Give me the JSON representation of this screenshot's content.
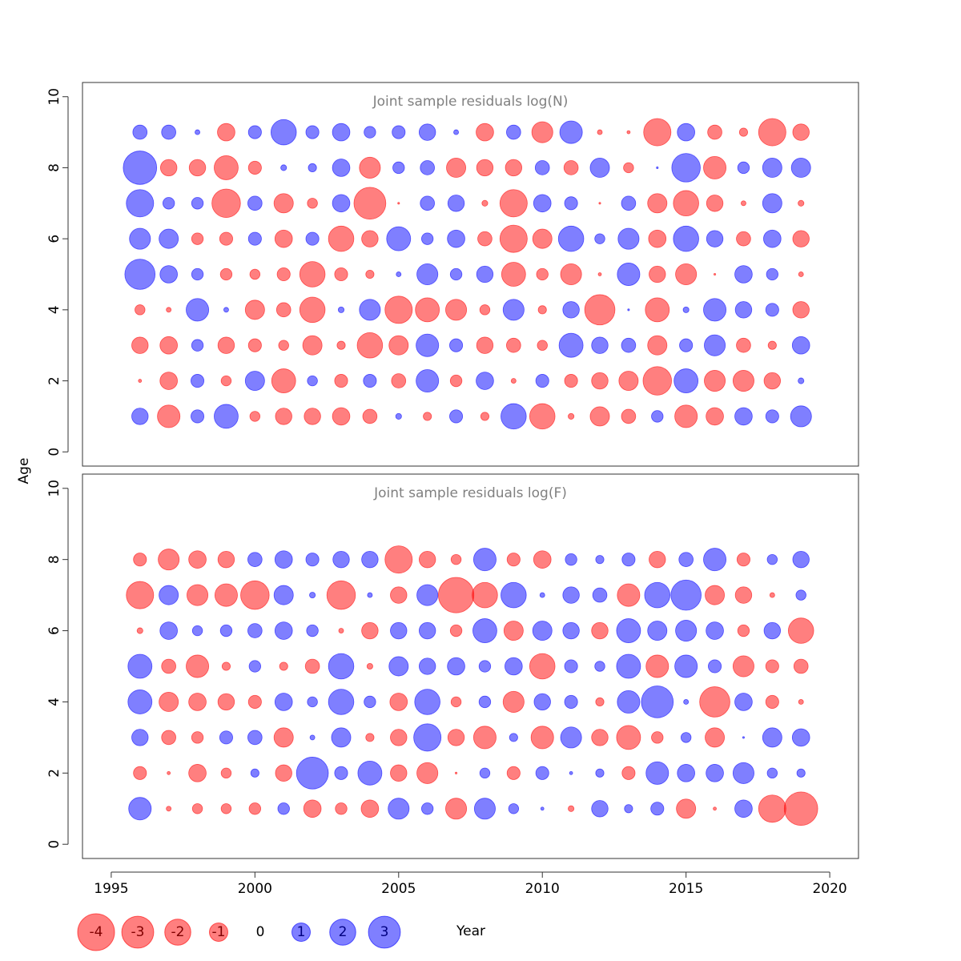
{
  "y_label": "Age",
  "x_label": "Year",
  "legend": [
    -4,
    -3,
    -2,
    -1,
    0,
    1,
    2,
    3
  ],
  "colors": {
    "negative": "#ff0000",
    "positive": "#0000ff"
  },
  "chart_data": [
    {
      "type": "bubble",
      "title": "Joint sample residuals log(N)",
      "x": [
        1996,
        1997,
        1998,
        1999,
        2000,
        2001,
        2002,
        2003,
        2004,
        2005,
        2006,
        2007,
        2008,
        2009,
        2010,
        2011,
        2012,
        2013,
        2014,
        2015,
        2016,
        2017,
        2018,
        2019
      ],
      "y": [
        1,
        2,
        3,
        4,
        5,
        6,
        7,
        8,
        9
      ],
      "values": [
        [
          0.8,
          -1.5,
          0.5,
          1.7,
          -0.3,
          -0.8,
          -0.8,
          -0.9,
          -0.6,
          0.1,
          -0.2,
          0.5,
          -0.2,
          1.9,
          -1.9,
          -0.1,
          -1.1,
          -0.6,
          0.4,
          -1.5,
          -0.9,
          0.9,
          0.5,
          1.3
        ],
        [
          -0.03,
          -0.9,
          0.5,
          -0.3,
          1.1,
          -1.7,
          0.3,
          -0.5,
          0.5,
          -0.6,
          1.5,
          -0.4,
          0.9,
          -0.07,
          0.5,
          -0.5,
          -0.8,
          -1.1,
          -2.4,
          1.7,
          -1.3,
          -1.3,
          -0.8,
          0.1
        ],
        [
          -0.8,
          -0.9,
          0.4,
          -0.8,
          -0.5,
          -0.3,
          -1.1,
          -0.2,
          -1.9,
          -1.1,
          1.5,
          0.5,
          -0.8,
          -0.6,
          -0.3,
          1.7,
          0.8,
          0.6,
          -1.1,
          0.5,
          1.3,
          -0.6,
          -0.2,
          0.9
        ],
        [
          -0.3,
          -0.07,
          1.5,
          0.07,
          -1.1,
          -0.6,
          -1.9,
          0.1,
          1.3,
          -2.2,
          -1.7,
          -1.3,
          -0.3,
          1.3,
          -0.2,
          0.8,
          -2.7,
          0.01,
          -1.7,
          0.1,
          1.5,
          0.8,
          0.5,
          -0.8
        ],
        [
          2.7,
          0.9,
          0.4,
          -0.4,
          -0.3,
          -0.5,
          -1.9,
          -0.5,
          -0.2,
          0.07,
          1.3,
          0.4,
          0.8,
          -1.7,
          -0.4,
          -1.3,
          -0.03,
          1.5,
          -0.8,
          -1.3,
          -0.01,
          0.9,
          0.4,
          -0.07
        ],
        [
          1.3,
          1.1,
          -0.4,
          -0.5,
          0.5,
          -0.9,
          0.5,
          -1.9,
          -0.8,
          1.7,
          0.4,
          0.9,
          -0.6,
          -2.2,
          -1.1,
          1.9,
          0.3,
          1.3,
          -0.9,
          1.9,
          0.8,
          -0.6,
          0.9,
          -0.8
        ],
        [
          2.2,
          0.4,
          0.4,
          -2.4,
          0.6,
          -1.1,
          -0.3,
          0.9,
          -3.0,
          -0.01,
          0.6,
          0.8,
          -0.1,
          -2.2,
          0.9,
          0.5,
          -0.01,
          0.6,
          -1.1,
          -1.9,
          -0.8,
          -0.07,
          1.1,
          -0.1
        ],
        [
          3.3,
          -0.8,
          -0.8,
          -1.7,
          -0.5,
          0.1,
          0.2,
          0.9,
          -1.3,
          0.4,
          0.6,
          -1.1,
          -0.8,
          -0.8,
          0.6,
          -0.6,
          1.1,
          -0.3,
          0.01,
          2.4,
          -1.5,
          0.4,
          1.1,
          1.1
        ],
        [
          0.6,
          0.6,
          0.07,
          -0.9,
          0.5,
          1.9,
          0.5,
          0.9,
          0.4,
          0.5,
          0.8,
          0.07,
          -0.9,
          0.6,
          -1.3,
          1.5,
          -0.07,
          -0.03,
          -2.2,
          0.9,
          -0.6,
          -0.2,
          -2.2,
          -0.8
        ]
      ],
      "xlim": [
        1994,
        2021
      ],
      "ylim": [
        -0.4,
        10.4
      ],
      "yticks": [
        0,
        2,
        4,
        6,
        8,
        10
      ]
    },
    {
      "type": "bubble",
      "title": "Joint sample residuals log(F)",
      "x": [
        1996,
        1997,
        1998,
        1999,
        2000,
        2001,
        2002,
        2003,
        2004,
        2005,
        2006,
        2007,
        2008,
        2009,
        2010,
        2011,
        2012,
        2013,
        2014,
        2015,
        2016,
        2017,
        2018,
        2019
      ],
      "y": [
        1,
        2,
        3,
        4,
        5,
        6,
        7,
        8
      ],
      "values": [
        [
          1.5,
          -0.07,
          -0.3,
          -0.3,
          -0.4,
          0.4,
          -0.9,
          -0.4,
          -0.9,
          1.3,
          0.4,
          -1.3,
          1.3,
          0.3,
          0.03,
          -0.1,
          0.8,
          0.2,
          0.5,
          -1.1,
          -0.03,
          0.9,
          -2.2,
          -3.3
        ],
        [
          -0.5,
          -0.03,
          -0.9,
          -0.3,
          0.2,
          -0.8,
          3.0,
          0.5,
          1.7,
          -0.8,
          -1.3,
          -0.01,
          0.3,
          -0.5,
          0.5,
          0.03,
          0.2,
          -0.5,
          1.5,
          0.9,
          0.9,
          1.3,
          0.3,
          0.2
        ],
        [
          0.8,
          -0.6,
          -0.4,
          0.5,
          0.6,
          -1.1,
          0.07,
          1.1,
          -0.2,
          -0.8,
          2.2,
          -0.8,
          -1.5,
          0.2,
          -1.5,
          1.3,
          -0.8,
          -1.7,
          -0.4,
          0.3,
          -1.1,
          0.01,
          1.1,
          0.9
        ],
        [
          1.7,
          -1.1,
          -0.9,
          -0.8,
          -0.5,
          0.9,
          0.3,
          1.9,
          0.4,
          -0.9,
          1.9,
          -0.3,
          0.4,
          -1.3,
          0.8,
          0.5,
          -0.2,
          1.5,
          3.0,
          0.07,
          -2.7,
          0.9,
          -0.5,
          -0.07
        ],
        [
          1.7,
          -0.6,
          -1.5,
          -0.2,
          0.4,
          -0.2,
          -0.6,
          1.9,
          -0.1,
          1.1,
          0.8,
          0.9,
          0.4,
          0.9,
          -1.9,
          0.5,
          0.3,
          1.7,
          -1.5,
          1.5,
          0.5,
          -1.3,
          -0.5,
          -0.6
        ],
        [
          -0.1,
          0.9,
          0.3,
          0.4,
          0.6,
          0.9,
          0.4,
          -0.07,
          -0.8,
          0.8,
          0.8,
          -0.4,
          1.7,
          -1.1,
          1.1,
          0.8,
          -0.8,
          1.7,
          1.1,
          1.3,
          0.9,
          -0.4,
          0.8,
          -1.9
        ],
        [
          -2.2,
          1.1,
          -1.3,
          -1.5,
          -2.4,
          1.1,
          0.1,
          -2.4,
          0.07,
          -0.8,
          1.3,
          -3.7,
          -1.9,
          1.9,
          0.07,
          0.8,
          0.6,
          -1.5,
          1.9,
          2.7,
          -1.1,
          -0.8,
          -0.07,
          0.3
        ],
        [
          -0.5,
          -1.3,
          -0.9,
          -0.8,
          0.6,
          0.9,
          0.5,
          0.8,
          0.8,
          -2.2,
          -0.8,
          -0.3,
          1.5,
          -0.5,
          -0.9,
          0.4,
          0.2,
          0.5,
          -0.8,
          0.6,
          1.5,
          -0.5,
          0.3,
          0.8
        ]
      ],
      "xlim": [
        1994,
        2021
      ],
      "ylim": [
        -0.4,
        10.4
      ],
      "yticks": [
        0,
        2,
        4,
        6,
        8,
        10
      ],
      "xticks": [
        1995,
        2000,
        2005,
        2010,
        2015,
        2020
      ]
    }
  ]
}
